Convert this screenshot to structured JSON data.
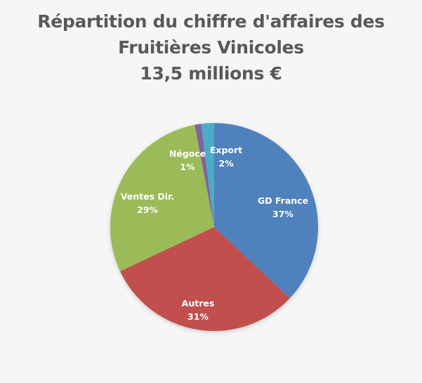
{
  "title": {
    "line1": "Répartition du chiffre d'affaires des",
    "line2": "Fruitières Vinicoles",
    "line3": "13,5 millions €"
  },
  "slices": [
    {
      "name": "GD France",
      "percent_label": "37%",
      "color": "#4f81bd"
    },
    {
      "name": "Autres",
      "percent_label": "31%",
      "color": "#c0504d"
    },
    {
      "name": "Ventes Dir.",
      "percent_label": "29%",
      "color": "#9bbb59"
    },
    {
      "name": "Négoce",
      "percent_label": "1%",
      "color": "#8064a2"
    },
    {
      "name": "Export",
      "percent_label": "2%",
      "color": "#4bacc6"
    }
  ],
  "chart_data": {
    "type": "pie",
    "title": "Répartition du chiffre d'affaires des Fruitières Vinicoles 13,5 millions €",
    "categories": [
      "GD France",
      "Autres",
      "Ventes Dir.",
      "Négoce",
      "Export"
    ],
    "values": [
      37,
      31,
      29,
      1,
      2
    ],
    "unit": "%",
    "colors": [
      "#4f81bd",
      "#c0504d",
      "#9bbb59",
      "#8064a2",
      "#4bacc6"
    ],
    "start_angle": "12 o'clock",
    "direction": "clockwise",
    "data_labels": "inside, category name and percentage",
    "legend": "none"
  }
}
